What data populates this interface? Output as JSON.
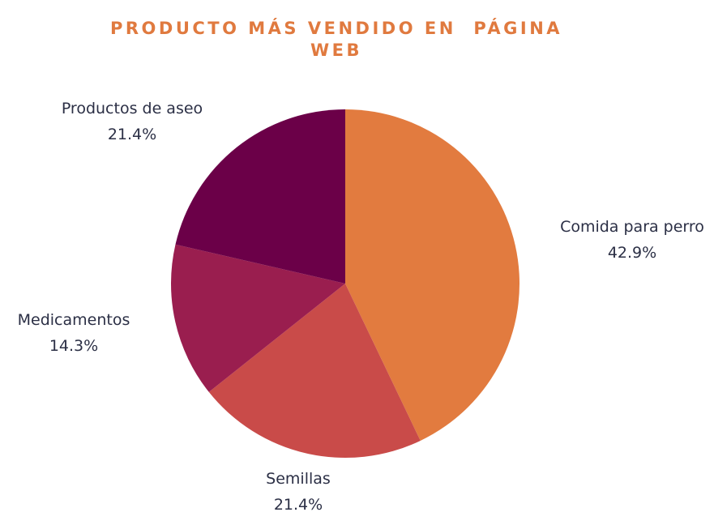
{
  "chart_data": {
    "type": "pie",
    "title": "PRODUCTO MÁS VENDIDO EN  PÁGINA WEB",
    "slices": [
      {
        "label": "Comida para perro",
        "percent": 42.9,
        "percent_text": "42.9%",
        "color": "#e27b3f"
      },
      {
        "label": "Semillas",
        "percent": 21.4,
        "percent_text": "21.4%",
        "color": "#c94b49"
      },
      {
        "label": "Medicamentos",
        "percent": 14.3,
        "percent_text": "14.3%",
        "color": "#9a1e4f"
      },
      {
        "label": "Productos de aseo",
        "percent": 21.4,
        "percent_text": "21.4%",
        "color": "#6b0048"
      }
    ],
    "legend": "none",
    "data_labels": "outside"
  }
}
